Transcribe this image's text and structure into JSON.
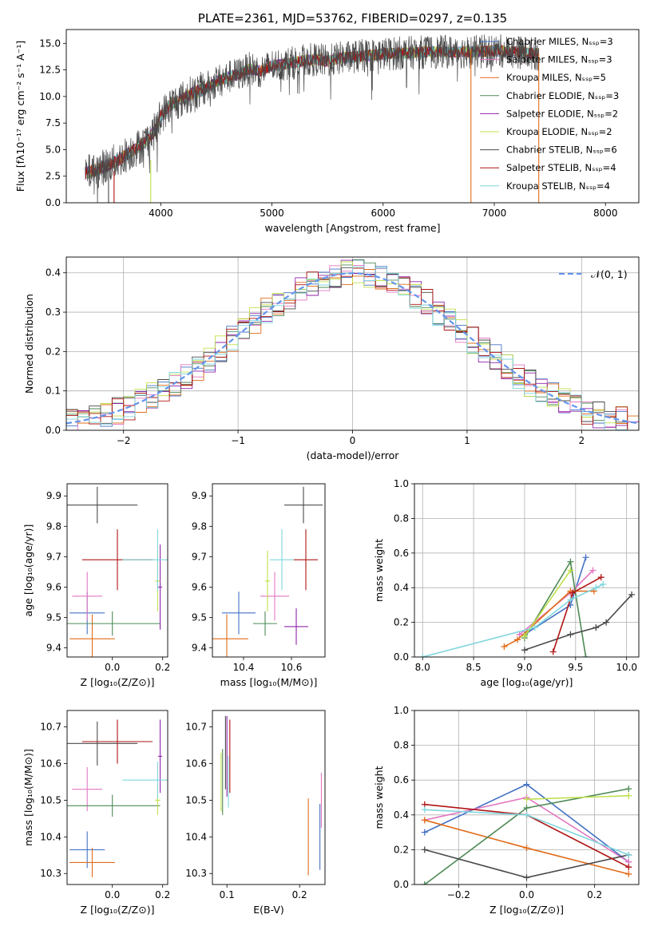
{
  "chart_data": [
    {
      "type": "line",
      "title": "PLATE=2361, MJD=53762, FIBERID=0297, z=0.135",
      "xlabel": "wavelength [Angstrom, rest frame]",
      "ylabel": "Flux [fλ10⁻¹⁷ erg cm⁻² s⁻¹ A⁻¹]",
      "xlim": [
        3150,
        8300
      ],
      "ylim": [
        0,
        16.3
      ],
      "xticks": [
        "4000",
        "5000",
        "6000",
        "7000",
        "8000"
      ],
      "yticks": [
        "0.0",
        "2.5",
        "5.0",
        "7.5",
        "10.0",
        "12.5",
        "15.0"
      ],
      "legend_position": "right",
      "series": [
        {
          "name": "Chabrier MILES, Nₛₛₚ=3",
          "color": "#4472c4"
        },
        {
          "name": "Salpeter MILES, Nₛₛₚ=3",
          "color": "#e377c2"
        },
        {
          "name": "Kroupa MILES, Nₛₛₚ=5",
          "color": "#e06c1a"
        },
        {
          "name": "Chabrier ELODIE, Nₛₛₚ=3",
          "color": "#4d8a56"
        },
        {
          "name": "Salpeter ELODIE, Nₛₛₚ=2",
          "color": "#8e24aa"
        },
        {
          "name": "Kroupa ELODIE, Nₛₛₚ=2",
          "color": "#c0e04d"
        },
        {
          "name": "Chabrier STELIB, Nₛₛₚ=6",
          "color": "#4a4a4a"
        },
        {
          "name": "Salpeter STELIB, Nₛₛₚ=4",
          "color": "#b01515"
        },
        {
          "name": "Kroupa STELIB, Nₛₛₚ=4",
          "color": "#7fd6dd"
        }
      ],
      "continuum": {
        "x": [
          3300,
          3450,
          3600,
          3700,
          3850,
          3950,
          4000,
          4100,
          4200,
          4300,
          4400,
          4500,
          4600,
          4700,
          4800,
          4900,
          5000,
          5100,
          5200,
          5300,
          5400,
          5500,
          5600,
          5800,
          6000,
          6200,
          6400,
          6600,
          6800,
          7000,
          7200,
          7400
        ],
        "y": [
          2.7,
          3.2,
          3.9,
          4.6,
          5.6,
          6.8,
          8.2,
          9.3,
          9.8,
          10.4,
          10.7,
          11.4,
          11.8,
          12.1,
          12.6,
          12.4,
          12.9,
          13.0,
          13.2,
          13.4,
          13.5,
          13.3,
          13.6,
          13.8,
          14.0,
          14.1,
          14.2,
          14.2,
          14.2,
          14.3,
          14.2,
          14.0
        ]
      }
    },
    {
      "type": "line",
      "xlabel": "(data-model)/error",
      "ylabel": "Normed distribution",
      "xlim": [
        -2.5,
        2.5
      ],
      "ylim": [
        0,
        0.44
      ],
      "xticks": [
        "−2",
        "−1",
        "0",
        "1",
        "2"
      ],
      "yticks": [
        "0.0",
        "0.1",
        "0.2",
        "0.3",
        "0.4"
      ],
      "legend_label": "𝒩(0, 1)",
      "legend_position": "top-right",
      "bin_width": 0.1,
      "grid": true
    },
    {
      "type": "scatter",
      "xlabel": "Z [log₁₀(Z/Z⊙)]",
      "ylabel": "age  [log₁₀(age/yr)]",
      "xlim": [
        -0.18,
        0.22
      ],
      "ylim": [
        9.37,
        9.94
      ],
      "xticks": [
        "0.0",
        "0.2"
      ],
      "yticks": [
        "9.4",
        "9.5",
        "9.6",
        "9.7",
        "9.8",
        "9.9"
      ],
      "points": [
        {
          "x": -0.1,
          "xerr": 0.07,
          "y": 9.515,
          "yerr": 0.07,
          "color": "#4472c4"
        },
        {
          "x": -0.1,
          "xerr": 0.06,
          "y": 9.57,
          "yerr": 0.08,
          "color": "#e377c2"
        },
        {
          "x": -0.08,
          "xerr": 0.09,
          "y": 9.43,
          "yerr": 0.08,
          "color": "#e06c1a"
        },
        {
          "x": 0.0,
          "xerr": 0.19,
          "y": 9.48,
          "yerr": 0.04,
          "color": "#4d8a56"
        },
        {
          "x": 0.19,
          "xerr": 0.008,
          "y": 9.6,
          "yerr": 0.14,
          "color": "#8e24aa"
        },
        {
          "x": 0.18,
          "xerr": 0.01,
          "y": 9.62,
          "yerr": 0.1,
          "color": "#c0e04d"
        },
        {
          "x": -0.06,
          "xerr": 0.16,
          "y": 9.87,
          "yerr": 0.06,
          "color": "#4a4a4a"
        },
        {
          "x": 0.02,
          "xerr": 0.14,
          "y": 9.69,
          "yerr": 0.1,
          "color": "#b01515"
        },
        {
          "x": 0.18,
          "xerr": 0.14,
          "y": 9.69,
          "yerr": 0.1,
          "color": "#7fd6dd"
        }
      ]
    },
    {
      "type": "scatter",
      "xlabel": "mass [log₁₀(M/M⊙)]",
      "xlim": [
        10.27,
        10.74
      ],
      "ylim": [
        9.37,
        9.94
      ],
      "xticks": [
        "10.4",
        "10.6"
      ],
      "yticks": [
        "9.4",
        "9.5",
        "9.6",
        "9.7",
        "9.8",
        "9.9"
      ],
      "points": [
        {
          "x": 10.38,
          "xerr": 0.07,
          "y": 9.515,
          "yerr": 0.07,
          "color": "#4472c4"
        },
        {
          "x": 10.53,
          "xerr": 0.06,
          "y": 9.57,
          "yerr": 0.08,
          "color": "#e377c2"
        },
        {
          "x": 10.33,
          "xerr": 0.09,
          "y": 9.43,
          "yerr": 0.08,
          "color": "#e06c1a"
        },
        {
          "x": 10.49,
          "xerr": 0.05,
          "y": 9.48,
          "yerr": 0.04,
          "color": "#4d8a56"
        },
        {
          "x": 10.62,
          "xerr": 0.05,
          "y": 9.47,
          "yerr": 0.06,
          "color": "#8e24aa"
        },
        {
          "x": 10.5,
          "xerr": 0.01,
          "y": 9.62,
          "yerr": 0.1,
          "color": "#c0e04d"
        },
        {
          "x": 10.65,
          "xerr": 0.08,
          "y": 9.87,
          "yerr": 0.06,
          "color": "#4a4a4a"
        },
        {
          "x": 10.66,
          "xerr": 0.05,
          "y": 9.69,
          "yerr": 0.1,
          "color": "#b01515"
        },
        {
          "x": 10.56,
          "xerr": 0.05,
          "y": 9.69,
          "yerr": 0.1,
          "color": "#7fd6dd"
        }
      ]
    },
    {
      "type": "line",
      "xlabel": "age  [log₁₀(age/yr)]",
      "ylabel": "mass weight",
      "xlim": [
        7.92,
        10.12
      ],
      "ylim": [
        0,
        1.0
      ],
      "xticks": [
        "8.0",
        "8.5",
        "9.0",
        "9.5",
        "10.0"
      ],
      "yticks": [
        "0.0",
        "0.2",
        "0.4",
        "0.6",
        "0.8",
        "1.0"
      ],
      "grid": true,
      "series": [
        {
          "color": "#4472c4",
          "x": [
            9.0,
            9.45,
            9.6
          ],
          "y": [
            0.13,
            0.3,
            0.575
          ]
        },
        {
          "color": "#e377c2",
          "x": [
            8.95,
            9.45,
            9.67
          ],
          "y": [
            0.13,
            0.37,
            0.5
          ]
        },
        {
          "color": "#e06c1a",
          "x": [
            8.8,
            8.93,
            9.45,
            9.5,
            9.68
          ],
          "y": [
            0.06,
            0.1,
            0.38,
            0.38,
            0.38
          ]
        },
        {
          "color": "#4d8a56",
          "x": [
            9.0,
            9.45,
            9.6
          ],
          "y": [
            0.11,
            0.55,
            0.0
          ]
        },
        {
          "color": "#c0e04d",
          "x": [
            9.0,
            9.45
          ],
          "y": [
            0.12,
            0.5
          ]
        },
        {
          "color": "#4a4a4a",
          "x": [
            9.0,
            9.45,
            9.7,
            9.8,
            10.05
          ],
          "y": [
            0.04,
            0.13,
            0.17,
            0.2,
            0.36
          ]
        },
        {
          "color": "#b01515",
          "x": [
            9.28,
            9.47,
            9.75
          ],
          "y": [
            0.03,
            0.37,
            0.46
          ]
        },
        {
          "color": "#7fd6dd",
          "x": [
            8.0,
            9.1,
            9.45,
            9.7,
            9.77
          ],
          "y": [
            0.0,
            0.17,
            0.33,
            0.4,
            0.42
          ]
        }
      ]
    },
    {
      "type": "scatter",
      "xlabel": "Z [log₁₀(Z/Z⊙)]",
      "ylabel": "mass [log₁₀(M/M⊙)]",
      "xlim": [
        -0.18,
        0.22
      ],
      "ylim": [
        10.27,
        10.745
      ],
      "xticks": [
        "0.0",
        "0.2"
      ],
      "yticks": [
        "10.3",
        "10.4",
        "10.5",
        "10.6",
        "10.7"
      ],
      "points": [
        {
          "x": -0.1,
          "xerr": 0.07,
          "y": 10.365,
          "yerr": 0.05,
          "color": "#4472c4"
        },
        {
          "x": -0.1,
          "xerr": 0.06,
          "y": 10.53,
          "yerr": 0.06,
          "color": "#e377c2"
        },
        {
          "x": -0.08,
          "xerr": 0.09,
          "y": 10.33,
          "yerr": 0.04,
          "color": "#e06c1a"
        },
        {
          "x": 0.0,
          "xerr": 0.19,
          "y": 10.485,
          "yerr": 0.03,
          "color": "#4d8a56"
        },
        {
          "x": 0.19,
          "xerr": 0.008,
          "y": 10.62,
          "yerr": 0.1,
          "color": "#8e24aa"
        },
        {
          "x": 0.18,
          "xerr": 0.01,
          "y": 10.5,
          "yerr": 0.04,
          "color": "#c0e04d"
        },
        {
          "x": -0.06,
          "xerr": 0.16,
          "y": 10.655,
          "yerr": 0.06,
          "color": "#4a4a4a"
        },
        {
          "x": 0.02,
          "xerr": 0.14,
          "y": 10.66,
          "yerr": 0.06,
          "color": "#b01515"
        },
        {
          "x": 0.18,
          "xerr": 0.14,
          "y": 10.555,
          "yerr": 0.05,
          "color": "#7fd6dd"
        }
      ]
    },
    {
      "type": "scatter",
      "xlabel": "E(B-V)",
      "xlim": [
        0.08,
        0.235
      ],
      "ylim": [
        10.27,
        10.745
      ],
      "xticks": [
        "0.1",
        "0.2"
      ],
      "yticks": [
        "10.3",
        "10.4",
        "10.5",
        "10.6",
        "10.7"
      ],
      "points": [
        {
          "x": 0.228,
          "y": 10.4,
          "yerr": 0.09,
          "color": "#4472c4"
        },
        {
          "x": 0.23,
          "y": 10.5,
          "yerr": 0.075,
          "color": "#e377c2"
        },
        {
          "x": 0.212,
          "y": 10.4,
          "yerr": 0.105,
          "color": "#e06c1a"
        },
        {
          "x": 0.094,
          "y": 10.55,
          "yerr": 0.09,
          "color": "#4d8a56"
        },
        {
          "x": 0.1,
          "y": 10.62,
          "yerr": 0.11,
          "color": "#8e24aa"
        },
        {
          "x": 0.092,
          "y": 10.55,
          "yerr": 0.08,
          "color": "#c0e04d"
        },
        {
          "x": 0.098,
          "y": 10.63,
          "yerr": 0.1,
          "color": "#4a4a4a"
        },
        {
          "x": 0.104,
          "y": 10.62,
          "yerr": 0.1,
          "color": "#b01515"
        },
        {
          "x": 0.102,
          "y": 10.55,
          "yerr": 0.07,
          "color": "#7fd6dd"
        }
      ]
    },
    {
      "type": "line",
      "xlabel": "Z [log₁₀(Z/Z⊙)]",
      "ylabel": "mass weight",
      "xlim": [
        -0.33,
        0.33
      ],
      "ylim": [
        0,
        1.0
      ],
      "xticks": [
        "−0.2",
        "0.0",
        "0.2"
      ],
      "yticks": [
        "0.0",
        "0.2",
        "0.4",
        "0.6",
        "0.8",
        "1.0"
      ],
      "grid": true,
      "series": [
        {
          "color": "#4472c4",
          "x": [
            -0.3,
            0.0,
            0.3
          ],
          "y": [
            0.3,
            0.575,
            0.13
          ]
        },
        {
          "color": "#e377c2",
          "x": [
            -0.3,
            0.0,
            0.3
          ],
          "y": [
            0.37,
            0.5,
            0.13
          ]
        },
        {
          "color": "#e06c1a",
          "x": [
            -0.3,
            0.0,
            0.3
          ],
          "y": [
            0.37,
            0.21,
            0.06
          ]
        },
        {
          "color": "#4d8a56",
          "x": [
            -0.3,
            0.0,
            0.3
          ],
          "y": [
            0.0,
            0.44,
            0.55
          ]
        },
        {
          "color": "#c0e04d",
          "x": [
            0.0,
            0.3
          ],
          "y": [
            0.49,
            0.51
          ]
        },
        {
          "color": "#4a4a4a",
          "x": [
            -0.3,
            0.0,
            0.3
          ],
          "y": [
            0.2,
            0.04,
            0.17
          ]
        },
        {
          "color": "#b01515",
          "x": [
            -0.3,
            0.0,
            0.3
          ],
          "y": [
            0.46,
            0.4,
            0.1
          ]
        },
        {
          "color": "#7fd6dd",
          "x": [
            -0.3,
            0.0,
            0.3
          ],
          "y": [
            0.43,
            0.4,
            0.17
          ]
        }
      ]
    }
  ]
}
